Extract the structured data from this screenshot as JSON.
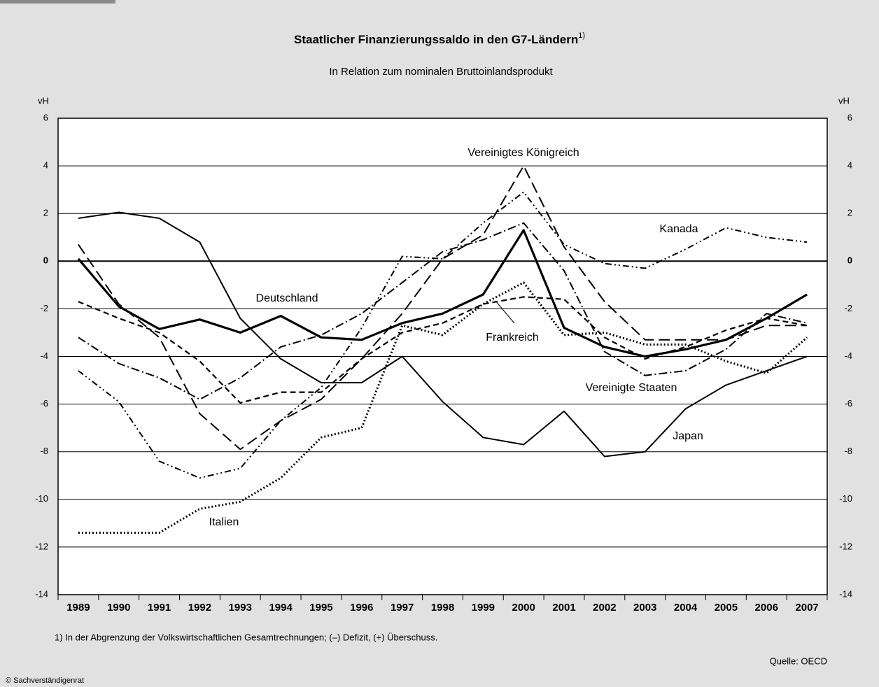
{
  "chart_data": {
    "type": "line",
    "title": "Staatlicher Finanzierungssaldo in den G7-Ländern",
    "title_note": "1)",
    "subtitle": "In Relation zum nominalen Bruttoinlandsprodukt",
    "y_label": "vH",
    "categories": [
      "1989",
      "1990",
      "1991",
      "1992",
      "1993",
      "1994",
      "1995",
      "1996",
      "1997",
      "1998",
      "1999",
      "2000",
      "2001",
      "2002",
      "2003",
      "2004",
      "2005",
      "2006",
      "2007"
    ],
    "ylim": [
      -14,
      6
    ],
    "yticks": [
      -14,
      -12,
      -10,
      -8,
      -6,
      -4,
      -2,
      0,
      2,
      4,
      6
    ],
    "grid": true,
    "series": [
      {
        "name": "Deutschland",
        "color": "#000000",
        "values": [
          0.1,
          -1.9,
          -2.85,
          -2.45,
          -3.0,
          -2.3,
          -3.2,
          -3.3,
          -2.6,
          -2.2,
          -1.4,
          1.3,
          -2.8,
          -3.6,
          -4.0,
          -3.7,
          -3.3,
          -2.4,
          -1.4
        ]
      },
      {
        "name": "Japan",
        "color": "#000000",
        "values": [
          1.8,
          2.05,
          1.8,
          0.8,
          -2.4,
          -4.1,
          -5.1,
          -5.1,
          -4.0,
          -5.9,
          -7.4,
          -7.7,
          -6.3,
          -8.2,
          -8.0,
          -6.2,
          -5.2,
          -4.6,
          -4.0
        ]
      },
      {
        "name": "Vereinigtes Königreich",
        "color": "#000000",
        "values": [
          0.7,
          -1.8,
          -3.2,
          -6.4,
          -7.9,
          -6.7,
          -5.8,
          -4.1,
          -2.2,
          0.1,
          1.1,
          4.0,
          0.6,
          -1.7,
          -3.3,
          -3.3,
          -3.3,
          -2.7,
          -2.7
        ]
      },
      {
        "name": "Kanada",
        "color": "#000000",
        "values": [
          -4.6,
          -5.9,
          -8.4,
          -9.1,
          -8.7,
          -6.7,
          -5.3,
          -2.8,
          0.2,
          0.1,
          1.6,
          2.9,
          0.7,
          -0.1,
          -0.3,
          0.5,
          1.4,
          1.0,
          0.8
        ]
      },
      {
        "name": "Vereinigte Staaten",
        "color": "#000000",
        "values": [
          -3.2,
          -4.3,
          -4.9,
          -5.8,
          -4.9,
          -3.6,
          -3.1,
          -2.2,
          -0.9,
          0.4,
          0.9,
          1.6,
          -0.4,
          -3.8,
          -4.8,
          -4.6,
          -3.7,
          -2.2,
          -2.6
        ]
      },
      {
        "name": "Frankreich",
        "color": "#000000",
        "values": [
          -1.7,
          -2.4,
          -3.0,
          -4.2,
          -5.95,
          -5.5,
          -5.5,
          -4.1,
          -3.0,
          -2.6,
          -1.8,
          -1.5,
          -1.6,
          -3.2,
          -4.1,
          -3.6,
          -2.9,
          -2.4,
          -2.7
        ]
      },
      {
        "name": "Italien",
        "color": "#000000",
        "values": [
          -11.4,
          -11.4,
          -11.4,
          -10.4,
          -10.1,
          -9.1,
          -7.4,
          -7.0,
          -2.7,
          -3.1,
          -1.8,
          -0.9,
          -3.1,
          -3.0,
          -3.5,
          -3.5,
          -4.2,
          -4.7,
          -3.2
        ]
      }
    ],
    "footnote": "1) In der Abgrenzung der Volkswirtschaftlichen Gesamtrechnungen; (–) Defizit, (+) Überschuss.",
    "source": "Quelle: OECD",
    "copyright": "© Sachverständigenrat"
  }
}
